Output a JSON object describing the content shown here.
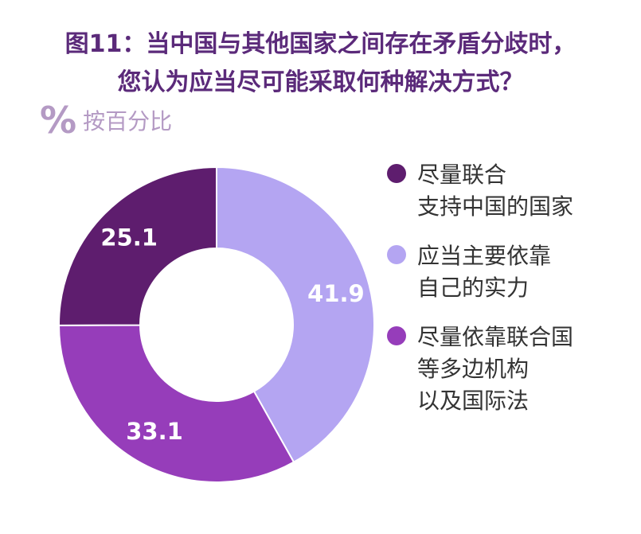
{
  "title_lines": [
    "图11：当中国与其他国家之间存在矛盾分歧时，",
    "您认为应当尽可能采取何种解决方式？"
  ],
  "unit": {
    "symbol": "%",
    "text": "按百分比"
  },
  "chart_data": {
    "type": "pie",
    "style": "donut",
    "slices": [
      {
        "label": "应当主要依靠自己的实力",
        "label_lines": [
          "应当主要依靠",
          "自己的实力"
        ],
        "value": 41.9,
        "value_label": "41.9",
        "color": "#b4a5f2",
        "label_color": "#ffffff"
      },
      {
        "label": "尽量依靠联合国等多边机构以及国际法",
        "label_lines": [
          "尽量依靠联合国",
          "等多边机构",
          "以及国际法"
        ],
        "value": 33.1,
        "value_label": "33.1",
        "color": "#963dba",
        "label_color": "#ffffff"
      },
      {
        "label": "尽量联合支持中国的国家",
        "label_lines": [
          "尽量联合",
          "支持中国的国家"
        ],
        "value": 25.1,
        "value_label": "25.1",
        "color": "#5e1d6e",
        "label_color": "#ffffff"
      }
    ],
    "legend_order": [
      2,
      0,
      1
    ],
    "legend_position": "right"
  }
}
